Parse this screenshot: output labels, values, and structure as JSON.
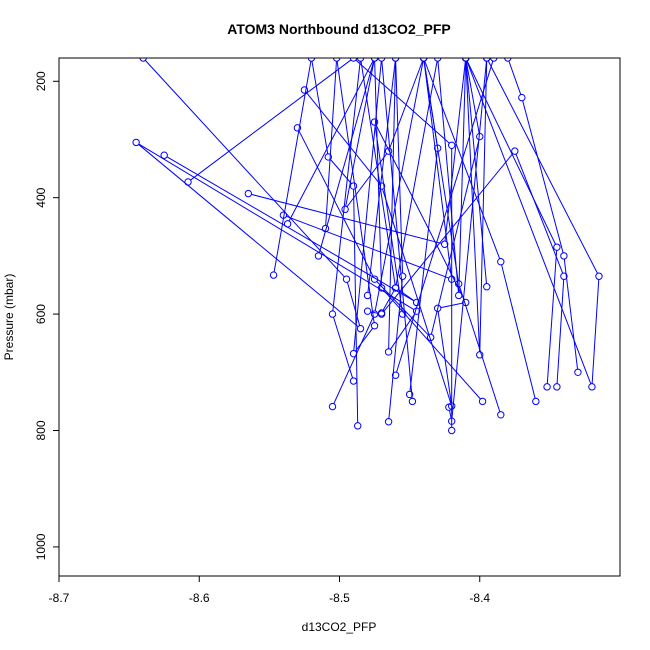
{
  "chart_data": {
    "type": "line",
    "title": "ATOM3 Northbound d13CO2_PFP",
    "xlabel": "d13CO2_PFP",
    "ylabel": "Pressure (mbar)",
    "xlim": [
      -8.7,
      -8.3
    ],
    "ylim": [
      1050,
      160
    ],
    "y_reversed": true,
    "x_ticks": [
      -8.7,
      -8.6,
      -8.5,
      -8.4
    ],
    "x_tick_labels": [
      "-8.7",
      "-8.6",
      "-8.5",
      "-8.4"
    ],
    "y_ticks": [
      200,
      400,
      600,
      800,
      1000
    ],
    "y_tick_labels": [
      "200",
      "400",
      "600",
      "800",
      "1000"
    ],
    "grid": false,
    "series_color": "#0000ff",
    "series": [
      {
        "points": [
          [
            -8.64,
            160
          ],
          [
            -8.495,
            540
          ],
          [
            -8.485,
            625
          ],
          [
            -8.645,
            305
          ],
          [
            -8.445,
            595
          ],
          [
            -8.465,
            665
          ],
          [
            -8.46,
            160
          ]
        ]
      },
      {
        "points": [
          [
            -8.625,
            327
          ],
          [
            -8.445,
            580
          ],
          [
            -8.46,
            555
          ],
          [
            -8.485,
            160
          ],
          [
            -8.505,
            600
          ],
          [
            -8.49,
            715
          ]
        ]
      },
      {
        "points": [
          [
            -8.608,
            373
          ],
          [
            -8.49,
            160
          ],
          [
            -8.42,
            310
          ],
          [
            -8.42,
            800
          ]
        ]
      },
      {
        "points": [
          [
            -8.565,
            393
          ],
          [
            -8.425,
            480
          ],
          [
            -8.41,
            160
          ],
          [
            -8.345,
            485
          ],
          [
            -8.352,
            725
          ]
        ]
      },
      {
        "points": [
          [
            -8.547,
            533
          ],
          [
            -8.52,
            160
          ],
          [
            -8.508,
            330
          ],
          [
            -8.49,
            380
          ],
          [
            -8.487,
            792
          ]
        ]
      },
      {
        "points": [
          [
            -8.54,
            430
          ],
          [
            -8.42,
            540
          ],
          [
            -8.44,
            160
          ],
          [
            -8.415,
            548
          ],
          [
            -8.385,
            773
          ]
        ]
      },
      {
        "points": [
          [
            -8.537,
            445
          ],
          [
            -8.475,
            160
          ],
          [
            -8.496,
            420
          ],
          [
            -8.465,
            320
          ],
          [
            -8.44,
            160
          ],
          [
            -8.43,
            315
          ],
          [
            -8.45,
            738
          ]
        ]
      },
      {
        "points": [
          [
            -8.525,
            215
          ],
          [
            -8.47,
            380
          ],
          [
            -8.42,
            758
          ],
          [
            -8.43,
            590
          ],
          [
            -8.41,
            580
          ],
          [
            -8.475,
            270
          ],
          [
            -8.455,
            600
          ]
        ]
      },
      {
        "points": [
          [
            -8.53,
            280
          ],
          [
            -8.475,
            540
          ],
          [
            -8.435,
            640
          ],
          [
            -8.4,
            295
          ],
          [
            -8.41,
            160
          ],
          [
            -8.395,
            553
          ]
        ]
      },
      {
        "points": [
          [
            -8.51,
            453
          ],
          [
            -8.502,
            160
          ],
          [
            -8.475,
            620
          ],
          [
            -8.49,
            668
          ],
          [
            -8.47,
            160
          ],
          [
            -8.448,
            750
          ]
        ]
      },
      {
        "points": [
          [
            -8.505,
            759
          ],
          [
            -8.475,
            600
          ],
          [
            -8.44,
            160
          ],
          [
            -8.385,
            510
          ],
          [
            -8.36,
            750
          ]
        ]
      },
      {
        "points": [
          [
            -8.48,
            595
          ],
          [
            -8.47,
            600
          ],
          [
            -8.375,
            320
          ],
          [
            -8.34,
            535
          ],
          [
            -8.345,
            725
          ]
        ]
      },
      {
        "points": [
          [
            -8.48,
            568
          ],
          [
            -8.46,
            160
          ],
          [
            -8.455,
            535
          ],
          [
            -8.465,
            785
          ]
        ]
      },
      {
        "points": [
          [
            -8.47,
            598
          ],
          [
            -8.46,
            555
          ],
          [
            -8.43,
            160
          ],
          [
            -8.415,
            568
          ],
          [
            -8.41,
            160
          ],
          [
            -8.4,
            670
          ],
          [
            -8.395,
            160
          ],
          [
            -8.38,
            160
          ],
          [
            -8.37,
            228
          ],
          [
            -8.34,
            500
          ],
          [
            -8.33,
            700
          ]
        ]
      },
      {
        "points": [
          [
            -8.46,
            705
          ],
          [
            -8.39,
            160
          ],
          [
            -8.41,
            160
          ],
          [
            -8.32,
            725
          ],
          [
            -8.315,
            535
          ],
          [
            -8.395,
            160
          ],
          [
            -8.42,
            784
          ],
          [
            -8.422,
            760
          ]
        ]
      },
      {
        "points": [
          [
            -8.515,
            500
          ],
          [
            -8.475,
            160
          ],
          [
            -8.47,
            555
          ],
          [
            -8.398,
            750
          ]
        ]
      }
    ]
  }
}
